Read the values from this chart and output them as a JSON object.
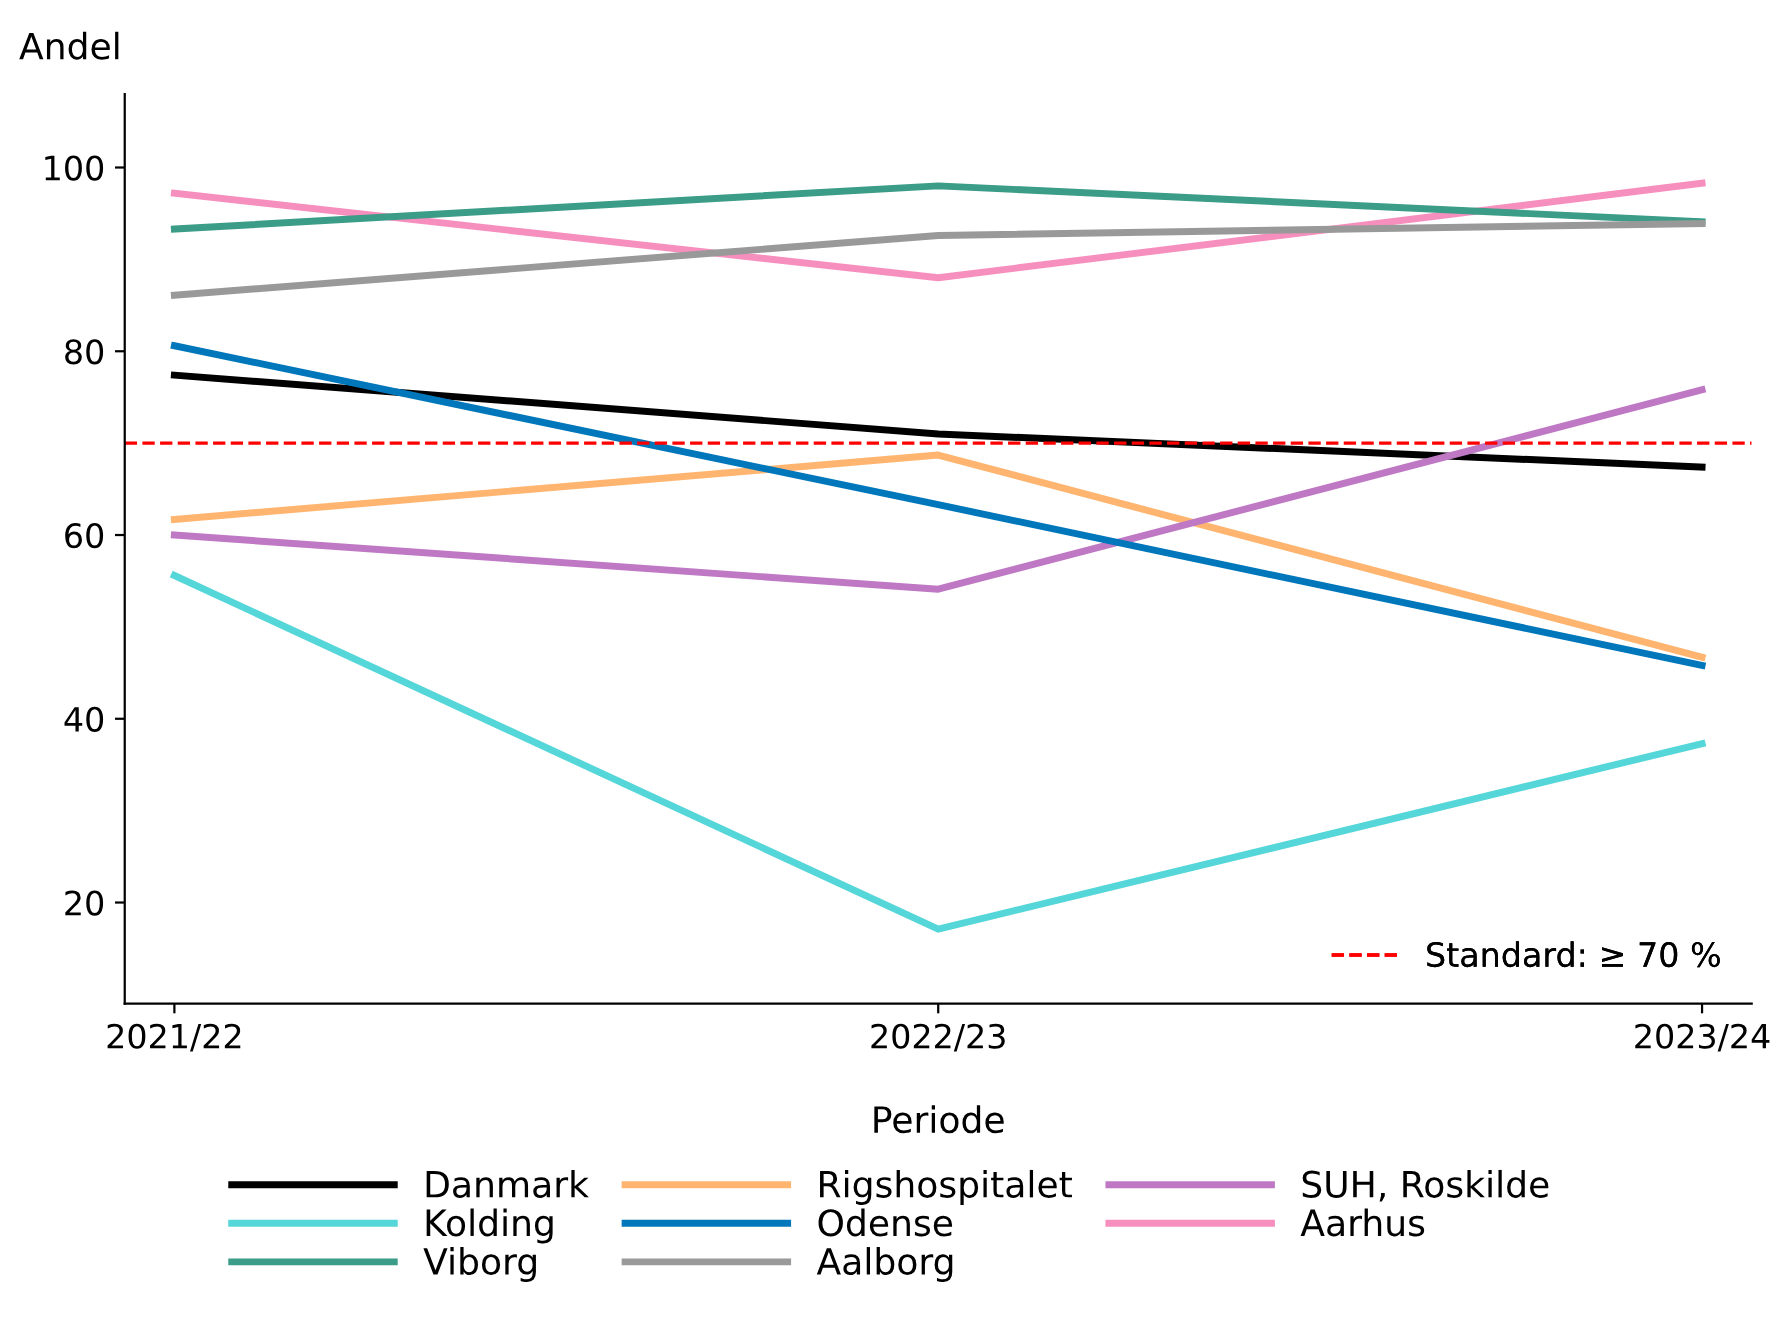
{
  "chart_data": {
    "type": "line",
    "ylabel": "Andel",
    "xlabel": "Periode",
    "categories": [
      "2021/22",
      "2022/23",
      "2023/24"
    ],
    "ylim": [
      9,
      108
    ],
    "yticks": [
      20,
      40,
      60,
      80,
      100
    ],
    "grid": false,
    "legend": "bottom",
    "line_style": "solid",
    "marker": "none",
    "ref_lines": [
      {
        "axis": "y",
        "value": 70,
        "label": "Standard: ≥ 70 %",
        "color": "#ff0000",
        "line_style": "dashed"
      }
    ],
    "series": [
      {
        "name": "Danmark",
        "color": "#000000",
        "values": [
          77.4,
          71.0,
          67.4
        ]
      },
      {
        "name": "Rigshospitalet",
        "color": "#ffb570",
        "values": [
          61.7,
          68.7,
          46.7
        ]
      },
      {
        "name": "SUH, Roskilde",
        "color": "#bf78c4",
        "values": [
          60.0,
          54.1,
          75.8
        ]
      },
      {
        "name": "Kolding",
        "color": "#55d6d8",
        "values": [
          55.6,
          17.1,
          37.3
        ]
      },
      {
        "name": "Odense",
        "color": "#0077bb",
        "values": [
          80.6,
          63.3,
          45.8
        ]
      },
      {
        "name": "Aarhus",
        "color": "#f78fbe",
        "values": [
          97.2,
          88.0,
          98.3
        ]
      },
      {
        "name": "Viborg",
        "color": "#3b9c87",
        "values": [
          93.3,
          98.0,
          94.1
        ]
      },
      {
        "name": "Aalborg",
        "color": "#999999",
        "values": [
          86.1,
          92.6,
          93.9
        ]
      }
    ]
  }
}
